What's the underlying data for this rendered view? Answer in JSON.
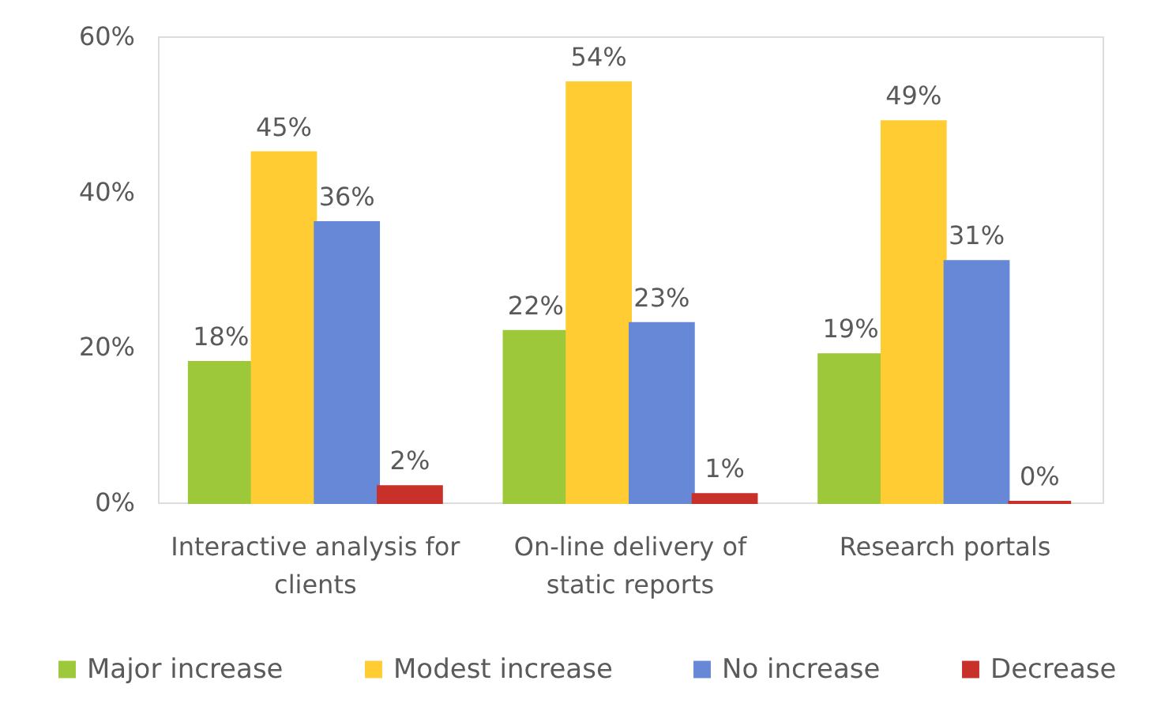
{
  "chart_data": {
    "type": "bar",
    "categories": [
      "Interactive analysis for clients",
      "On-line delivery of static reports",
      "Research portals"
    ],
    "series": [
      {
        "name": "Major increase",
        "color": "#9dc83a",
        "values": [
          18,
          22,
          19
        ],
        "value_labels": [
          "18%",
          "22%",
          "19%"
        ]
      },
      {
        "name": "Modest increase",
        "color": "#ffcc33",
        "values": [
          45,
          54,
          49
        ],
        "value_labels": [
          "45%",
          "54%",
          "49%"
        ]
      },
      {
        "name": "No increase",
        "color": "#6688d6",
        "values": [
          36,
          23,
          31
        ],
        "value_labels": [
          "36%",
          "23%",
          "31%"
        ]
      },
      {
        "name": "Decrease",
        "color": "#c8302a",
        "values": [
          2,
          1,
          0
        ],
        "value_labels": [
          "2%",
          "1%",
          "0%"
        ]
      }
    ],
    "ylim": [
      0,
      60
    ],
    "yticks": [
      {
        "value": 0,
        "label": "0%"
      },
      {
        "value": 20,
        "label": "20%"
      },
      {
        "value": 40,
        "label": "40%"
      },
      {
        "value": 60,
        "label": "60%"
      }
    ],
    "legend": "bottom"
  }
}
